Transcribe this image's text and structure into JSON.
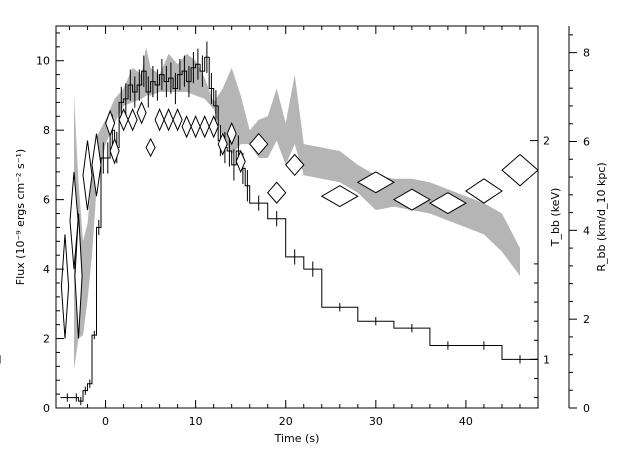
{
  "chart_data": {
    "type": "line",
    "xlabel": "Time (s)",
    "ylabel": "Flux (10⁻⁹ ergs cm⁻² s⁻¹)",
    "right_label_inner": "T_bb (keV)",
    "right_label_outer": "R_bb (km/d_10 kpc)",
    "xlim": [
      -5.5,
      48
    ],
    "ylim": [
      0,
      11
    ],
    "x_ticks": [
      "0",
      "10",
      "20",
      "30",
      "40"
    ],
    "x_tick_values": [
      0,
      10,
      20,
      30,
      40
    ],
    "y_ticks": [
      "0",
      "2",
      "4",
      "6",
      "8",
      "10"
    ],
    "y_tick_values": [
      0,
      2,
      4,
      6,
      8,
      10
    ],
    "T_ticks": [
      "1",
      "2"
    ],
    "T_tick_flux_positions": [
      1.4,
      7.7
    ],
    "R_ticks": [
      "0",
      "2",
      "4",
      "6",
      "8"
    ],
    "R_tick_values": [
      0,
      2,
      4,
      6,
      8
    ],
    "R_scale_max": 8.6,
    "series": [
      {
        "kind": "histogram",
        "x_edges": [
          -5.0,
          -3.5,
          -3.0,
          -2.5,
          -2.0,
          -1.5,
          -1.0,
          -0.5,
          0.0,
          0.5,
          1.0,
          1.5,
          2.0,
          2.5,
          3.0,
          3.5,
          4.0,
          4.5,
          5.0,
          5.5,
          6.0,
          6.5,
          7.0,
          7.5,
          8.0,
          8.5,
          9.0,
          9.5,
          10.0,
          10.5,
          11.0,
          11.5,
          12.0,
          12.5,
          13.0,
          13.5,
          14.0,
          14.5,
          15.0,
          15.5,
          16.0,
          18.0,
          20.0,
          22.0,
          24.0,
          28.0,
          32.0,
          36.0,
          40.0,
          44.0,
          48.0
        ],
        "values": [
          0.3,
          0.3,
          0.2,
          0.5,
          0.7,
          2.1,
          5.2,
          7.2,
          7.2,
          8.0,
          7.5,
          8.8,
          8.9,
          9.3,
          9.1,
          9.3,
          9.7,
          9.1,
          9.4,
          9.3,
          9.6,
          9.4,
          9.5,
          9.2,
          9.6,
          9.7,
          9.4,
          9.8,
          9.9,
          9.7,
          10.1,
          9.2,
          8.7,
          7.7,
          7.5,
          7.4,
          7.0,
          7.4,
          6.9,
          6.4,
          5.9,
          5.45,
          4.35,
          4.0,
          2.9,
          2.5,
          2.3,
          1.8,
          1.8,
          1.4,
          1.4
        ]
      },
      {
        "kind": "band",
        "x": [
          -3.5,
          -3.0,
          -2.5,
          -2.0,
          -1.5,
          -1.0,
          0.0,
          1.0,
          2.0,
          3.0,
          4.0,
          4.5,
          5.0,
          6.0,
          7.0,
          8.0,
          9.0,
          10.0,
          11.0,
          12.0,
          13.0,
          14.0,
          15.0,
          16.0,
          17.0,
          18.0,
          19.0,
          20.0,
          21.0,
          22.0,
          24.0,
          26.0,
          28.0,
          30.0,
          32.0,
          34.0,
          36.0,
          38.0,
          40.0,
          42.0,
          44.0,
          46.0
        ],
        "upper": [
          9.0,
          6.5,
          4.8,
          5.3,
          6.7,
          7.8,
          8.3,
          8.9,
          9.2,
          9.8,
          9.6,
          10.4,
          9.8,
          9.6,
          10.2,
          9.9,
          10.2,
          10.0,
          9.5,
          8.8,
          9.2,
          9.8,
          9.0,
          8.0,
          8.3,
          8.4,
          9.2,
          8.2,
          9.6,
          7.6,
          7.5,
          7.4,
          7.0,
          6.7,
          6.6,
          6.6,
          6.5,
          6.3,
          6.1,
          5.9,
          5.6,
          4.6
        ],
        "lower": [
          1.1,
          2.0,
          2.1,
          3.1,
          4.4,
          6.3,
          7.6,
          8.2,
          8.7,
          8.8,
          8.9,
          9.0,
          9.0,
          9.1,
          9.1,
          9.1,
          9.1,
          9.0,
          8.9,
          8.6,
          7.8,
          7.3,
          7.6,
          7.6,
          7.2,
          7.2,
          7.7,
          7.0,
          7.6,
          6.7,
          6.6,
          6.5,
          6.2,
          5.7,
          5.8,
          5.7,
          5.6,
          5.4,
          5.2,
          5.0,
          4.5,
          3.8
        ]
      },
      {
        "kind": "diamonds",
        "x": [
          -4.5,
          -3.5,
          -3.0,
          -2.0,
          -1.0,
          0.5,
          1.0,
          2.0,
          3.0,
          4.0,
          5.0,
          6.0,
          7.0,
          8.0,
          9.0,
          10.0,
          11.0,
          12.0,
          13.0,
          14.0,
          15.0,
          17.0,
          19.0,
          21.0,
          26.0,
          30.0,
          34.0,
          38.0,
          42.0,
          46.0
        ],
        "y": [
          3.5,
          5.4,
          3.8,
          6.7,
          7.0,
          8.2,
          7.4,
          8.3,
          8.3,
          8.5,
          7.5,
          8.3,
          8.3,
          8.3,
          8.1,
          8.1,
          8.1,
          8.1,
          7.6,
          7.9,
          7.1,
          7.6,
          6.2,
          7.0,
          6.1,
          6.5,
          6.0,
          5.9,
          6.25,
          6.85
        ],
        "dx": [
          0.4,
          0.45,
          0.4,
          0.5,
          0.5,
          0.5,
          0.5,
          0.5,
          0.5,
          0.5,
          0.5,
          0.5,
          0.5,
          0.5,
          0.5,
          0.5,
          0.5,
          0.5,
          0.5,
          0.5,
          0.5,
          1.0,
          1.0,
          1.0,
          2.0,
          2.0,
          2.0,
          2.0,
          2.0,
          2.0
        ],
        "dy": [
          1.5,
          1.4,
          1.8,
          1.0,
          0.9,
          0.35,
          0.35,
          0.3,
          0.3,
          0.3,
          0.25,
          0.3,
          0.3,
          0.3,
          0.3,
          0.3,
          0.3,
          0.3,
          0.3,
          0.3,
          0.3,
          0.3,
          0.3,
          0.3,
          0.3,
          0.3,
          0.3,
          0.3,
          0.35,
          0.45
        ]
      }
    ]
  }
}
